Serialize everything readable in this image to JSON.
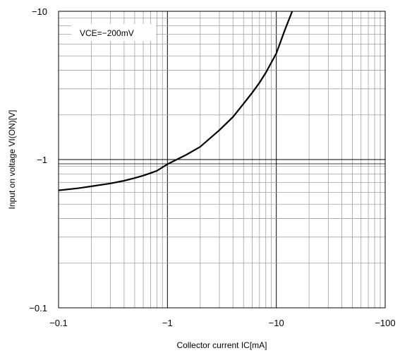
{
  "chart_data": {
    "type": "line",
    "x_scale": "log",
    "y_scale": "log",
    "xlim": [
      0.1,
      100
    ],
    "ylim": [
      0.1,
      10
    ],
    "xlabel": "Collector current  IC[mA]",
    "ylabel": "Input on voltage VI(ON)[V]",
    "x_tick_labels": [
      "−0.1",
      "−1",
      "−10",
      "−100"
    ],
    "x_tick_values": [
      0.1,
      1,
      10,
      100
    ],
    "y_tick_labels": [
      "−0.1",
      "−1",
      "−10"
    ],
    "y_tick_values": [
      0.1,
      1,
      10
    ],
    "legend": {
      "text": "VCE=−200mV",
      "position": "top-left"
    },
    "grid": true,
    "series": [
      {
        "x": [
          0.1,
          0.15,
          0.2,
          0.3,
          0.4,
          0.5,
          0.6,
          0.7,
          0.8,
          1.0,
          1.5,
          2.0,
          3.0,
          4.0,
          5.0,
          6.0,
          7.0,
          8.0,
          10.0,
          12.0,
          14.0
        ],
        "y": [
          0.62,
          0.64,
          0.66,
          0.69,
          0.72,
          0.75,
          0.78,
          0.81,
          0.84,
          0.93,
          1.08,
          1.22,
          1.58,
          1.94,
          2.38,
          2.82,
          3.3,
          3.85,
          5.2,
          7.5,
          10.0
        ]
      }
    ],
    "line_color": "#000000"
  }
}
